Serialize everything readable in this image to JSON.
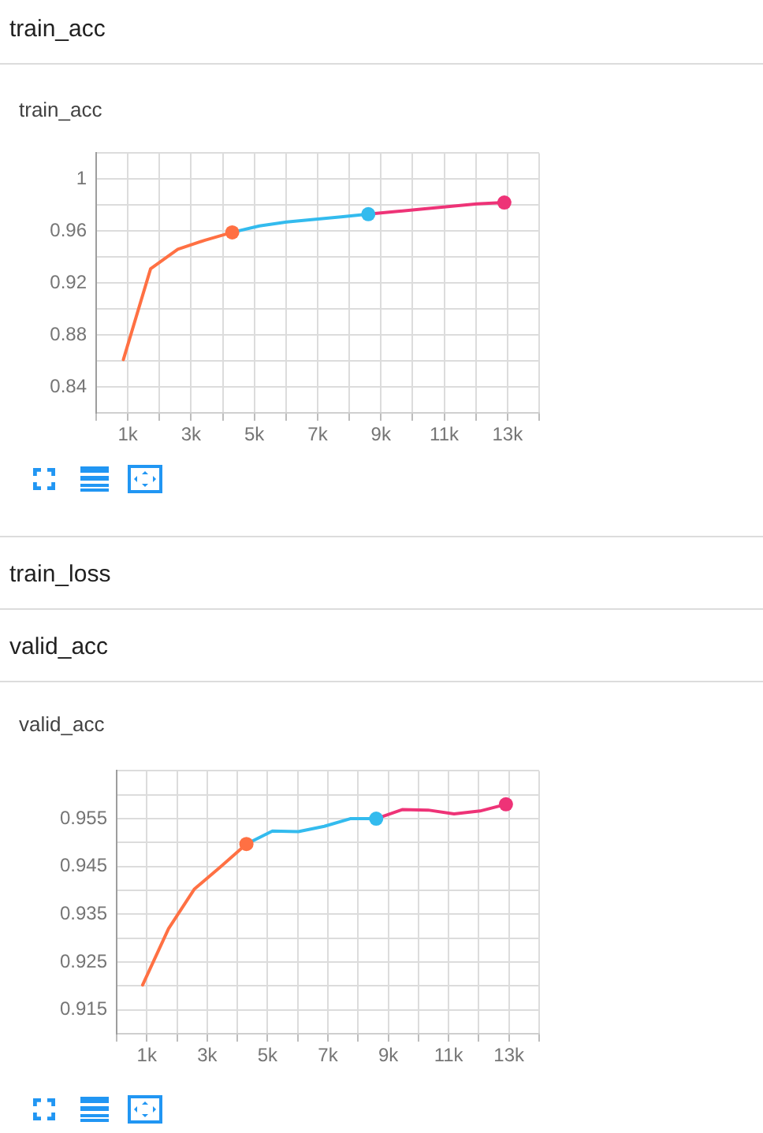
{
  "chart_data": [
    {
      "type": "line",
      "title": "train_acc",
      "annotations": [
        "train_acc"
      ],
      "xlim": [
        0,
        14000
      ],
      "xticks": [
        {
          "value": 0,
          "label": null
        },
        {
          "value": 1000,
          "label": "1k"
        },
        {
          "value": 2000,
          "label": null
        },
        {
          "value": 3000,
          "label": "3k"
        },
        {
          "value": 4000,
          "label": null
        },
        {
          "value": 5000,
          "label": "5k"
        },
        {
          "value": 6000,
          "label": null
        },
        {
          "value": 7000,
          "label": "7k"
        },
        {
          "value": 8000,
          "label": null
        },
        {
          "value": 9000,
          "label": "9k"
        },
        {
          "value": 10000,
          "label": null
        },
        {
          "value": 11000,
          "label": "11k"
        },
        {
          "value": 12000,
          "label": null
        },
        {
          "value": 13000,
          "label": "13k"
        },
        {
          "value": 14000,
          "label": null
        }
      ],
      "ylim": [
        0.82,
        1.02
      ],
      "yticks": [
        {
          "value": 0.82,
          "label": null
        },
        0.84,
        {
          "value": 0.86,
          "label": null
        },
        0.88,
        {
          "value": 0.9,
          "label": null
        },
        0.92,
        {
          "value": 0.94,
          "label": null
        },
        0.96,
        {
          "value": 0.98,
          "label": null
        },
        1,
        {
          "value": 1.02,
          "label": null
        }
      ],
      "grid": true,
      "series": [
        {
          "color": "#ff7043",
          "x": [
            860,
            1720,
            2580,
            3440,
            4300
          ],
          "values": [
            0.861,
            0.931,
            0.946,
            0.953,
            0.959
          ]
        },
        {
          "color": "#33bbee",
          "x": [
            4300,
            5160,
            6020,
            6880,
            7740,
            8600
          ],
          "values": [
            0.959,
            0.964,
            0.967,
            0.969,
            0.971,
            0.973
          ]
        },
        {
          "color": "#ee3377",
          "x": [
            8600,
            9460,
            10320,
            11180,
            12040,
            12900
          ],
          "values": [
            0.973,
            0.975,
            0.977,
            0.979,
            0.981,
            0.982
          ]
        },
        {
          "type": "scatter",
          "marker": "circle",
          "x": [
            4300,
            8600,
            12900
          ],
          "values": [
            0.959,
            0.973,
            0.982
          ],
          "colors": [
            "#ff7043",
            "#33bbee",
            "#ee3377"
          ]
        }
      ]
    },
    {
      "type": "line",
      "title": "valid_acc",
      "annotations": [
        "train_loss",
        "valid_acc"
      ],
      "xlim": [
        0,
        14000
      ],
      "xticks": [
        {
          "value": 0,
          "label": null
        },
        {
          "value": 1000,
          "label": "1k"
        },
        {
          "value": 2000,
          "label": null
        },
        {
          "value": 3000,
          "label": "3k"
        },
        {
          "value": 4000,
          "label": null
        },
        {
          "value": 5000,
          "label": "5k"
        },
        {
          "value": 6000,
          "label": null
        },
        {
          "value": 7000,
          "label": "7k"
        },
        {
          "value": 8000,
          "label": null
        },
        {
          "value": 9000,
          "label": "9k"
        },
        {
          "value": 10000,
          "label": null
        },
        {
          "value": 11000,
          "label": "11k"
        },
        {
          "value": 12000,
          "label": null
        },
        {
          "value": 13000,
          "label": "13k"
        },
        {
          "value": 14000,
          "label": null
        }
      ],
      "ylim": [
        0.91,
        0.965
      ],
      "yticks": [
        {
          "value": 0.91,
          "label": null
        },
        0.915,
        {
          "value": 0.92,
          "label": null
        },
        0.925,
        {
          "value": 0.93,
          "label": null
        },
        0.935,
        {
          "value": 0.94,
          "label": null
        },
        0.945,
        {
          "value": 0.95,
          "label": null
        },
        0.955,
        {
          "value": 0.96,
          "label": null
        },
        {
          "value": 0.965,
          "label": null
        }
      ],
      "grid": true,
      "series": [
        {
          "color": "#ff7043",
          "x": [
            860,
            1720,
            2580,
            3440,
            4300
          ],
          "values": [
            0.9202,
            0.932,
            0.9403,
            0.9449,
            0.9497
          ]
        },
        {
          "color": "#33bbee",
          "x": [
            4300,
            5160,
            6020,
            6880,
            7740,
            8600
          ],
          "values": [
            0.9497,
            0.9524,
            0.9523,
            0.9534,
            0.955,
            0.955
          ]
        },
        {
          "color": "#ee3377",
          "x": [
            8600,
            9460,
            10320,
            11180,
            12040,
            12900
          ],
          "values": [
            0.955,
            0.9569,
            0.9568,
            0.956,
            0.9566,
            0.958
          ]
        },
        {
          "type": "scatter",
          "marker": "circle",
          "x": [
            4300,
            8600,
            12900
          ],
          "values": [
            0.9497,
            0.955,
            0.958
          ],
          "colors": [
            "#ff7043",
            "#33bbee",
            "#ee3377"
          ]
        }
      ]
    }
  ]
}
